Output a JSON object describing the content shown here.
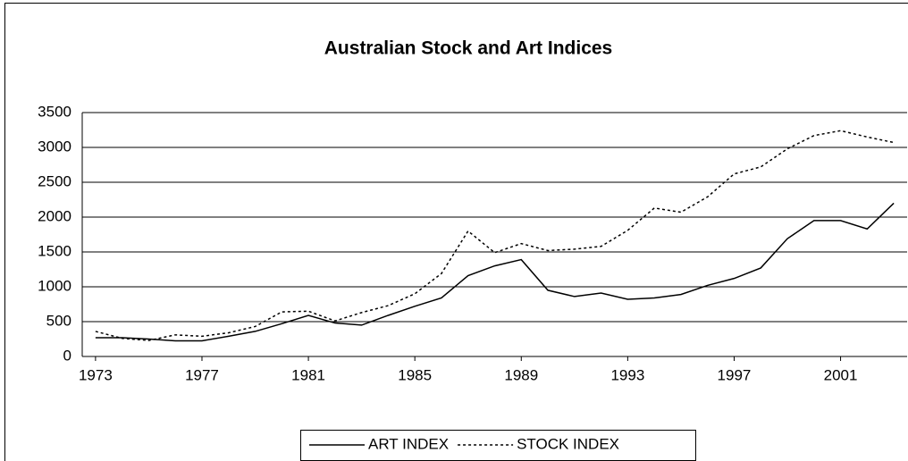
{
  "chart_data": {
    "type": "line",
    "title": "Australian Stock and Art Indices",
    "x": [
      1973,
      1974,
      1975,
      1976,
      1977,
      1978,
      1979,
      1980,
      1981,
      1982,
      1983,
      1984,
      1985,
      1986,
      1987,
      1988,
      1989,
      1990,
      1991,
      1992,
      1993,
      1994,
      1995,
      1996,
      1997,
      1998,
      1999,
      2000,
      2001,
      2002,
      2003
    ],
    "series": [
      {
        "name": "ART INDEX",
        "color": "#000000",
        "dash": "solid",
        "values": [
          270,
          270,
          250,
          225,
          225,
          290,
          360,
          470,
          590,
          480,
          450,
          590,
          720,
          840,
          1160,
          1300,
          1390,
          950,
          860,
          910,
          820,
          840,
          890,
          1020,
          1120,
          1270,
          1690,
          1950,
          1950,
          1830,
          2200
        ]
      },
      {
        "name": "STOCK INDEX",
        "color": "#000000",
        "dash": "dotted",
        "values": [
          360,
          260,
          230,
          310,
          290,
          340,
          430,
          640,
          650,
          510,
          630,
          730,
          900,
          1190,
          1800,
          1490,
          1620,
          1520,
          1540,
          1580,
          1810,
          2130,
          2070,
          2290,
          2620,
          2720,
          2980,
          3170,
          3240,
          3150,
          3070
        ]
      }
    ],
    "xlim": [
      1972.5,
      2003.5
    ],
    "xticks": [
      1973,
      1977,
      1981,
      1985,
      1989,
      1993,
      1997,
      2001
    ],
    "ylim": [
      0,
      3500
    ],
    "yticks": [
      0,
      500,
      1000,
      1500,
      2000,
      2500,
      3000,
      3500
    ],
    "grid": true,
    "legend": "bottom"
  }
}
